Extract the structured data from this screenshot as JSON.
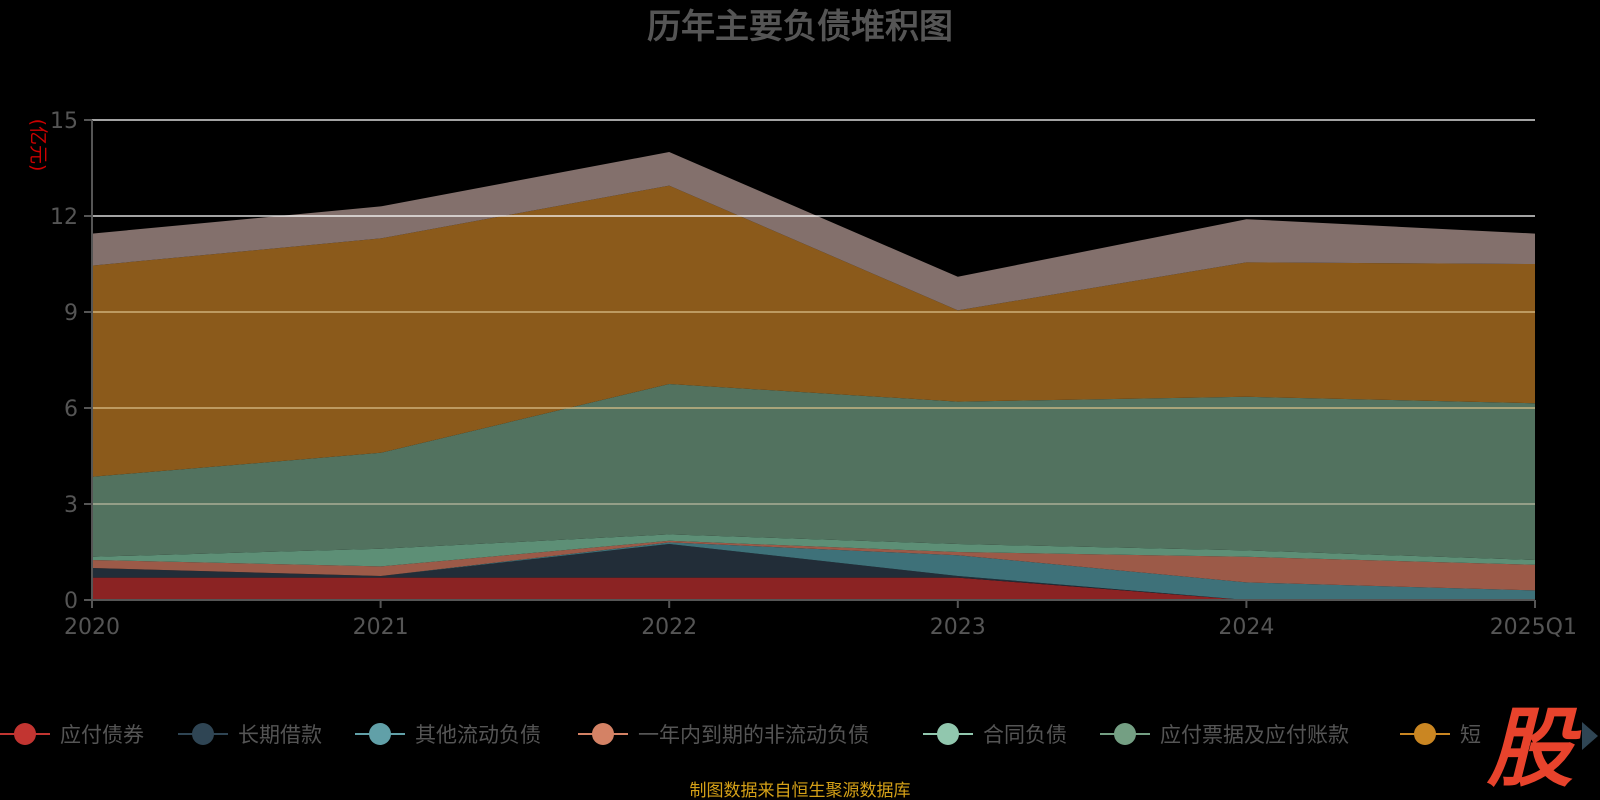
{
  "chart_data": {
    "type": "area",
    "stacked": true,
    "title": "历年主要负债堆积图",
    "unit": "(亿元)",
    "categories": [
      "2020",
      "2021",
      "2022",
      "2023",
      "2024",
      "2025Q1"
    ],
    "ylim": [
      0,
      15
    ],
    "yticks": [
      "0",
      "3",
      "6",
      "9",
      "12",
      "15"
    ],
    "grid": true,
    "legend_position": "bottom",
    "series": [
      {
        "name": "应付债券",
        "color": "#8b2323",
        "legend_color": "#c23531",
        "values": [
          0.7,
          0.7,
          0.7,
          0.7,
          0.0,
          0.0
        ]
      },
      {
        "name": "长期借款",
        "color": "#222d38",
        "legend_color": "#2f4554",
        "values": [
          0.3,
          0.05,
          1.05,
          0.05,
          0.0,
          0.0
        ]
      },
      {
        "name": "其他流动负债",
        "color": "#3e7179",
        "legend_color": "#61a0a8",
        "values": [
          0.0,
          0.0,
          0.05,
          0.65,
          0.55,
          0.3
        ]
      },
      {
        "name": "一年内到期的非流动负债",
        "color": "#9c5a48",
        "legend_color": "#d48265",
        "values": [
          0.25,
          0.3,
          0.05,
          0.1,
          0.8,
          0.8
        ]
      },
      {
        "name": "合同负债",
        "color": "#5d8f76",
        "legend_color": "#91c7ae",
        "values": [
          0.1,
          0.55,
          0.2,
          0.25,
          0.2,
          0.15
        ]
      },
      {
        "name": "应付票据及应付账款",
        "color": "#52725f",
        "legend_color": "#749f83",
        "values": [
          2.5,
          3.0,
          4.7,
          4.45,
          4.8,
          4.9
        ]
      },
      {
        "name": "短期借款",
        "color": "#8b5a1b",
        "legend_color": "#ca8622",
        "values": [
          6.6,
          6.7,
          6.2,
          2.85,
          4.2,
          4.35
        ]
      },
      {
        "name": "",
        "color": "#83706c",
        "legend_color": "#bda29a",
        "values": [
          1.0,
          1.0,
          1.05,
          1.05,
          1.35,
          0.95
        ]
      }
    ],
    "legend_visible": [
      "应付债券",
      "长期借款",
      "其他流动负债",
      "一年内到期的非流动负债",
      "合同负债",
      "应付票据及应付账款",
      "短"
    ]
  },
  "source_text": "制图数据来自恒生聚源数据库",
  "logo_text": "股",
  "icons": {
    "legend_next": "triangle-right-icon"
  }
}
